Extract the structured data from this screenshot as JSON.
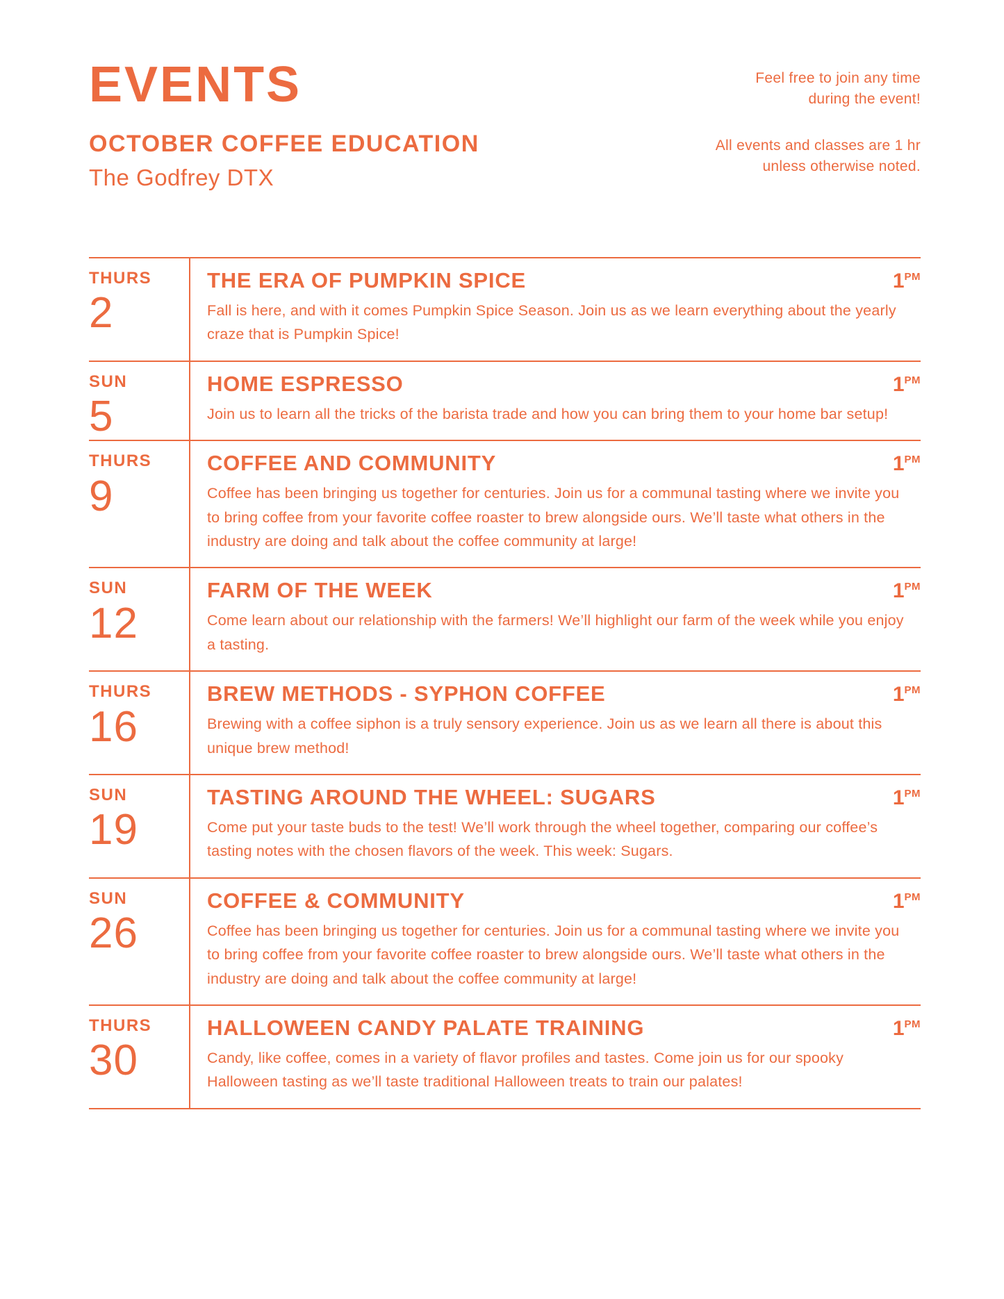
{
  "accent_color": "#EC6B40",
  "header": {
    "title": "EVENTS",
    "subtitle": "OCTOBER COFFEE EDUCATION",
    "location": "The Godfrey DTX",
    "note_join": "Feel free to join any time\nduring the event!",
    "note_duration": "All events and classes are 1 hr\nunless otherwise noted."
  },
  "events": [
    {
      "day": "THURS",
      "date": "2",
      "title": "THE ERA OF PUMPKIN SPICE",
      "hour": "1",
      "meridiem": "PM",
      "description": "Fall is here, and with it comes Pumpkin Spice Season. Join us as we learn everything about the yearly craze that is Pumpkin Spice!"
    },
    {
      "day": "SUN",
      "date": "5",
      "title": "HOME ESPRESSO",
      "hour": "1",
      "meridiem": "PM",
      "description": "Join us to learn all the tricks of the barista trade and how you can bring them to your home bar setup!"
    },
    {
      "day": "THURS",
      "date": "9",
      "title": "COFFEE AND COMMUNITY",
      "hour": "1",
      "meridiem": "PM",
      "description": "Coffee has been bringing us together for centuries. Join us for a communal tasting where we invite you to bring coffee from your favorite coffee roaster to brew alongside ours. We’ll taste what others in the industry are doing and talk about the coffee community at large!"
    },
    {
      "day": "SUN",
      "date": "12",
      "title": "FARM OF THE WEEK",
      "hour": "1",
      "meridiem": "PM",
      "description": "Come learn about our relationship with the farmers! We’ll highlight our farm of the week while you enjoy a tasting."
    },
    {
      "day": "THURS",
      "date": "16",
      "title": "BREW METHODS - SYPHON COFFEE",
      "hour": "1",
      "meridiem": "PM",
      "description": "Brewing with a coffee siphon is a truly sensory experience. Join us as we learn all there is about this unique brew method!"
    },
    {
      "day": "SUN",
      "date": "19",
      "title": "TASTING AROUND THE WHEEL: SUGARS",
      "hour": "1",
      "meridiem": "PM",
      "description": "Come put your taste buds to the test! We’ll work through the wheel together, comparing our coffee’s tasting notes with the chosen flavors of the week. This week: Sugars."
    },
    {
      "day": "SUN",
      "date": "26",
      "title": "COFFEE & COMMUNITY",
      "hour": "1",
      "meridiem": "PM",
      "description": "Coffee has been bringing us together for centuries. Join us for a communal tasting where we invite you to bring coffee from your favorite coffee roaster to brew alongside ours. We’ll taste what others in the industry are doing and talk about the coffee community at large!"
    },
    {
      "day": "THURS",
      "date": "30",
      "title": "HALLOWEEN CANDY PALATE TRAINING",
      "hour": "1",
      "meridiem": "PM",
      "description": "Candy, like coffee, comes in a variety of flavor profiles and tastes. Come join us for our spooky Halloween tasting as we’ll taste traditional Halloween treats to train our palates!"
    }
  ]
}
